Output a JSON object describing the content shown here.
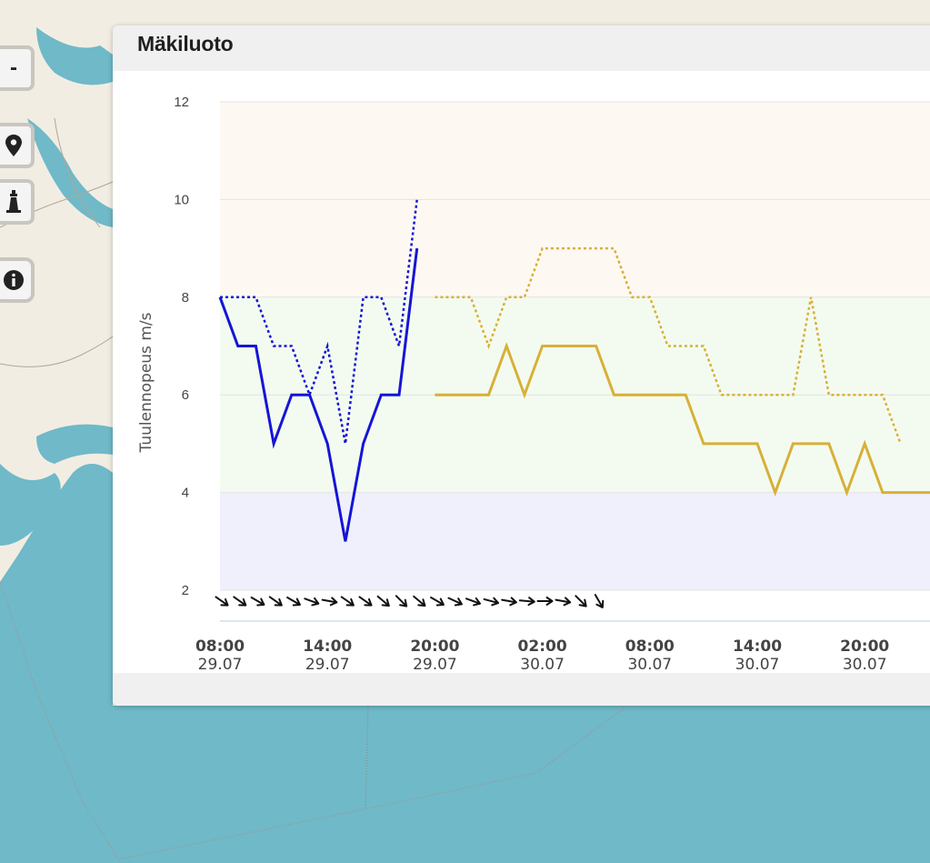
{
  "map": {
    "water_color": "#6fb9c8",
    "land_color": "#f2ede3",
    "controls": [
      {
        "name": "zoom-out-icon",
        "label": "-"
      },
      {
        "name": "location-pin-icon"
      },
      {
        "name": "lighthouse-icon"
      },
      {
        "name": "info-icon"
      }
    ]
  },
  "panel": {
    "title": "Mäkiluoto"
  },
  "chart_data": {
    "type": "line",
    "ylabel": "Tuulennopeus m/s",
    "ylim": [
      2,
      12
    ],
    "yticks": [
      2,
      4,
      6,
      8,
      10,
      12
    ],
    "x_unit": "hours since 29.07 00:00",
    "xticks": [
      {
        "time": "08:00",
        "date": "29.07",
        "x": 8
      },
      {
        "time": "14:00",
        "date": "29.07",
        "x": 14
      },
      {
        "time": "20:00",
        "date": "29.07",
        "x": 20
      },
      {
        "time": "02:00",
        "date": "30.07",
        "x": 26
      },
      {
        "time": "08:00",
        "date": "30.07",
        "x": 32
      },
      {
        "time": "14:00",
        "date": "30.07",
        "x": 38
      },
      {
        "time": "20:00",
        "date": "30.07",
        "x": 44
      }
    ],
    "bands": [
      {
        "from": 2,
        "to": 4,
        "color": "#f0f0fc"
      },
      {
        "from": 4,
        "to": 8,
        "color": "#f3fbf0"
      },
      {
        "from": 8,
        "to": 12,
        "color": "#fdf9f2"
      }
    ],
    "series": [
      {
        "style": "solid",
        "color": "#1515d6",
        "points": [
          [
            8,
            8
          ],
          [
            9,
            7
          ],
          [
            10,
            7
          ],
          [
            11,
            5
          ],
          [
            12,
            6
          ],
          [
            13,
            6
          ],
          [
            14,
            5
          ],
          [
            15,
            3
          ],
          [
            16,
            5
          ],
          [
            17,
            6
          ],
          [
            18,
            6
          ],
          [
            19,
            9
          ]
        ]
      },
      {
        "style": "dotted",
        "color": "#1515d6",
        "points": [
          [
            8,
            8
          ],
          [
            10,
            8
          ],
          [
            11,
            7
          ],
          [
            12,
            7
          ],
          [
            13,
            6
          ],
          [
            14,
            7
          ],
          [
            15,
            5
          ],
          [
            16,
            8
          ],
          [
            17,
            8
          ],
          [
            18,
            7
          ],
          [
            19,
            10
          ]
        ]
      },
      {
        "style": "solid",
        "color": "#d8b038",
        "points": [
          [
            20,
            6
          ],
          [
            23,
            6
          ],
          [
            24,
            7
          ],
          [
            25,
            6
          ],
          [
            26,
            7
          ],
          [
            29,
            7
          ],
          [
            30,
            6
          ],
          [
            34,
            6
          ],
          [
            35,
            5
          ],
          [
            38,
            5
          ],
          [
            39,
            4
          ],
          [
            40,
            5
          ],
          [
            42,
            5
          ],
          [
            43,
            4
          ],
          [
            44,
            5
          ],
          [
            45,
            4
          ],
          [
            48,
            4
          ]
        ]
      },
      {
        "style": "dotted",
        "color": "#d8b038",
        "points": [
          [
            20,
            8
          ],
          [
            22,
            8
          ],
          [
            23,
            7
          ],
          [
            24,
            8
          ],
          [
            25,
            8
          ],
          [
            26,
            9
          ],
          [
            30,
            9
          ],
          [
            31,
            8
          ],
          [
            32,
            8
          ],
          [
            33,
            7
          ],
          [
            35,
            7
          ],
          [
            36,
            6
          ],
          [
            40,
            6
          ],
          [
            41,
            8
          ],
          [
            42,
            6
          ],
          [
            45,
            6
          ],
          [
            46,
            5
          ]
        ]
      }
    ],
    "wind_directions": [
      {
        "x": 8,
        "deg": 35
      },
      {
        "x": 9,
        "deg": 35
      },
      {
        "x": 10,
        "deg": 30
      },
      {
        "x": 11,
        "deg": 35
      },
      {
        "x": 12,
        "deg": 30
      },
      {
        "x": 13,
        "deg": 20
      },
      {
        "x": 14,
        "deg": 10
      },
      {
        "x": 15,
        "deg": 35
      },
      {
        "x": 16,
        "deg": 35
      },
      {
        "x": 17,
        "deg": 40
      },
      {
        "x": 18,
        "deg": 45
      },
      {
        "x": 19,
        "deg": 40
      },
      {
        "x": 20,
        "deg": 30
      },
      {
        "x": 21,
        "deg": 25
      },
      {
        "x": 22,
        "deg": 20
      },
      {
        "x": 23,
        "deg": 15
      },
      {
        "x": 24,
        "deg": 10
      },
      {
        "x": 25,
        "deg": 5
      },
      {
        "x": 26,
        "deg": 0
      },
      {
        "x": 27,
        "deg": 10
      },
      {
        "x": 28,
        "deg": 45
      },
      {
        "x": 29,
        "deg": 60
      }
    ]
  }
}
